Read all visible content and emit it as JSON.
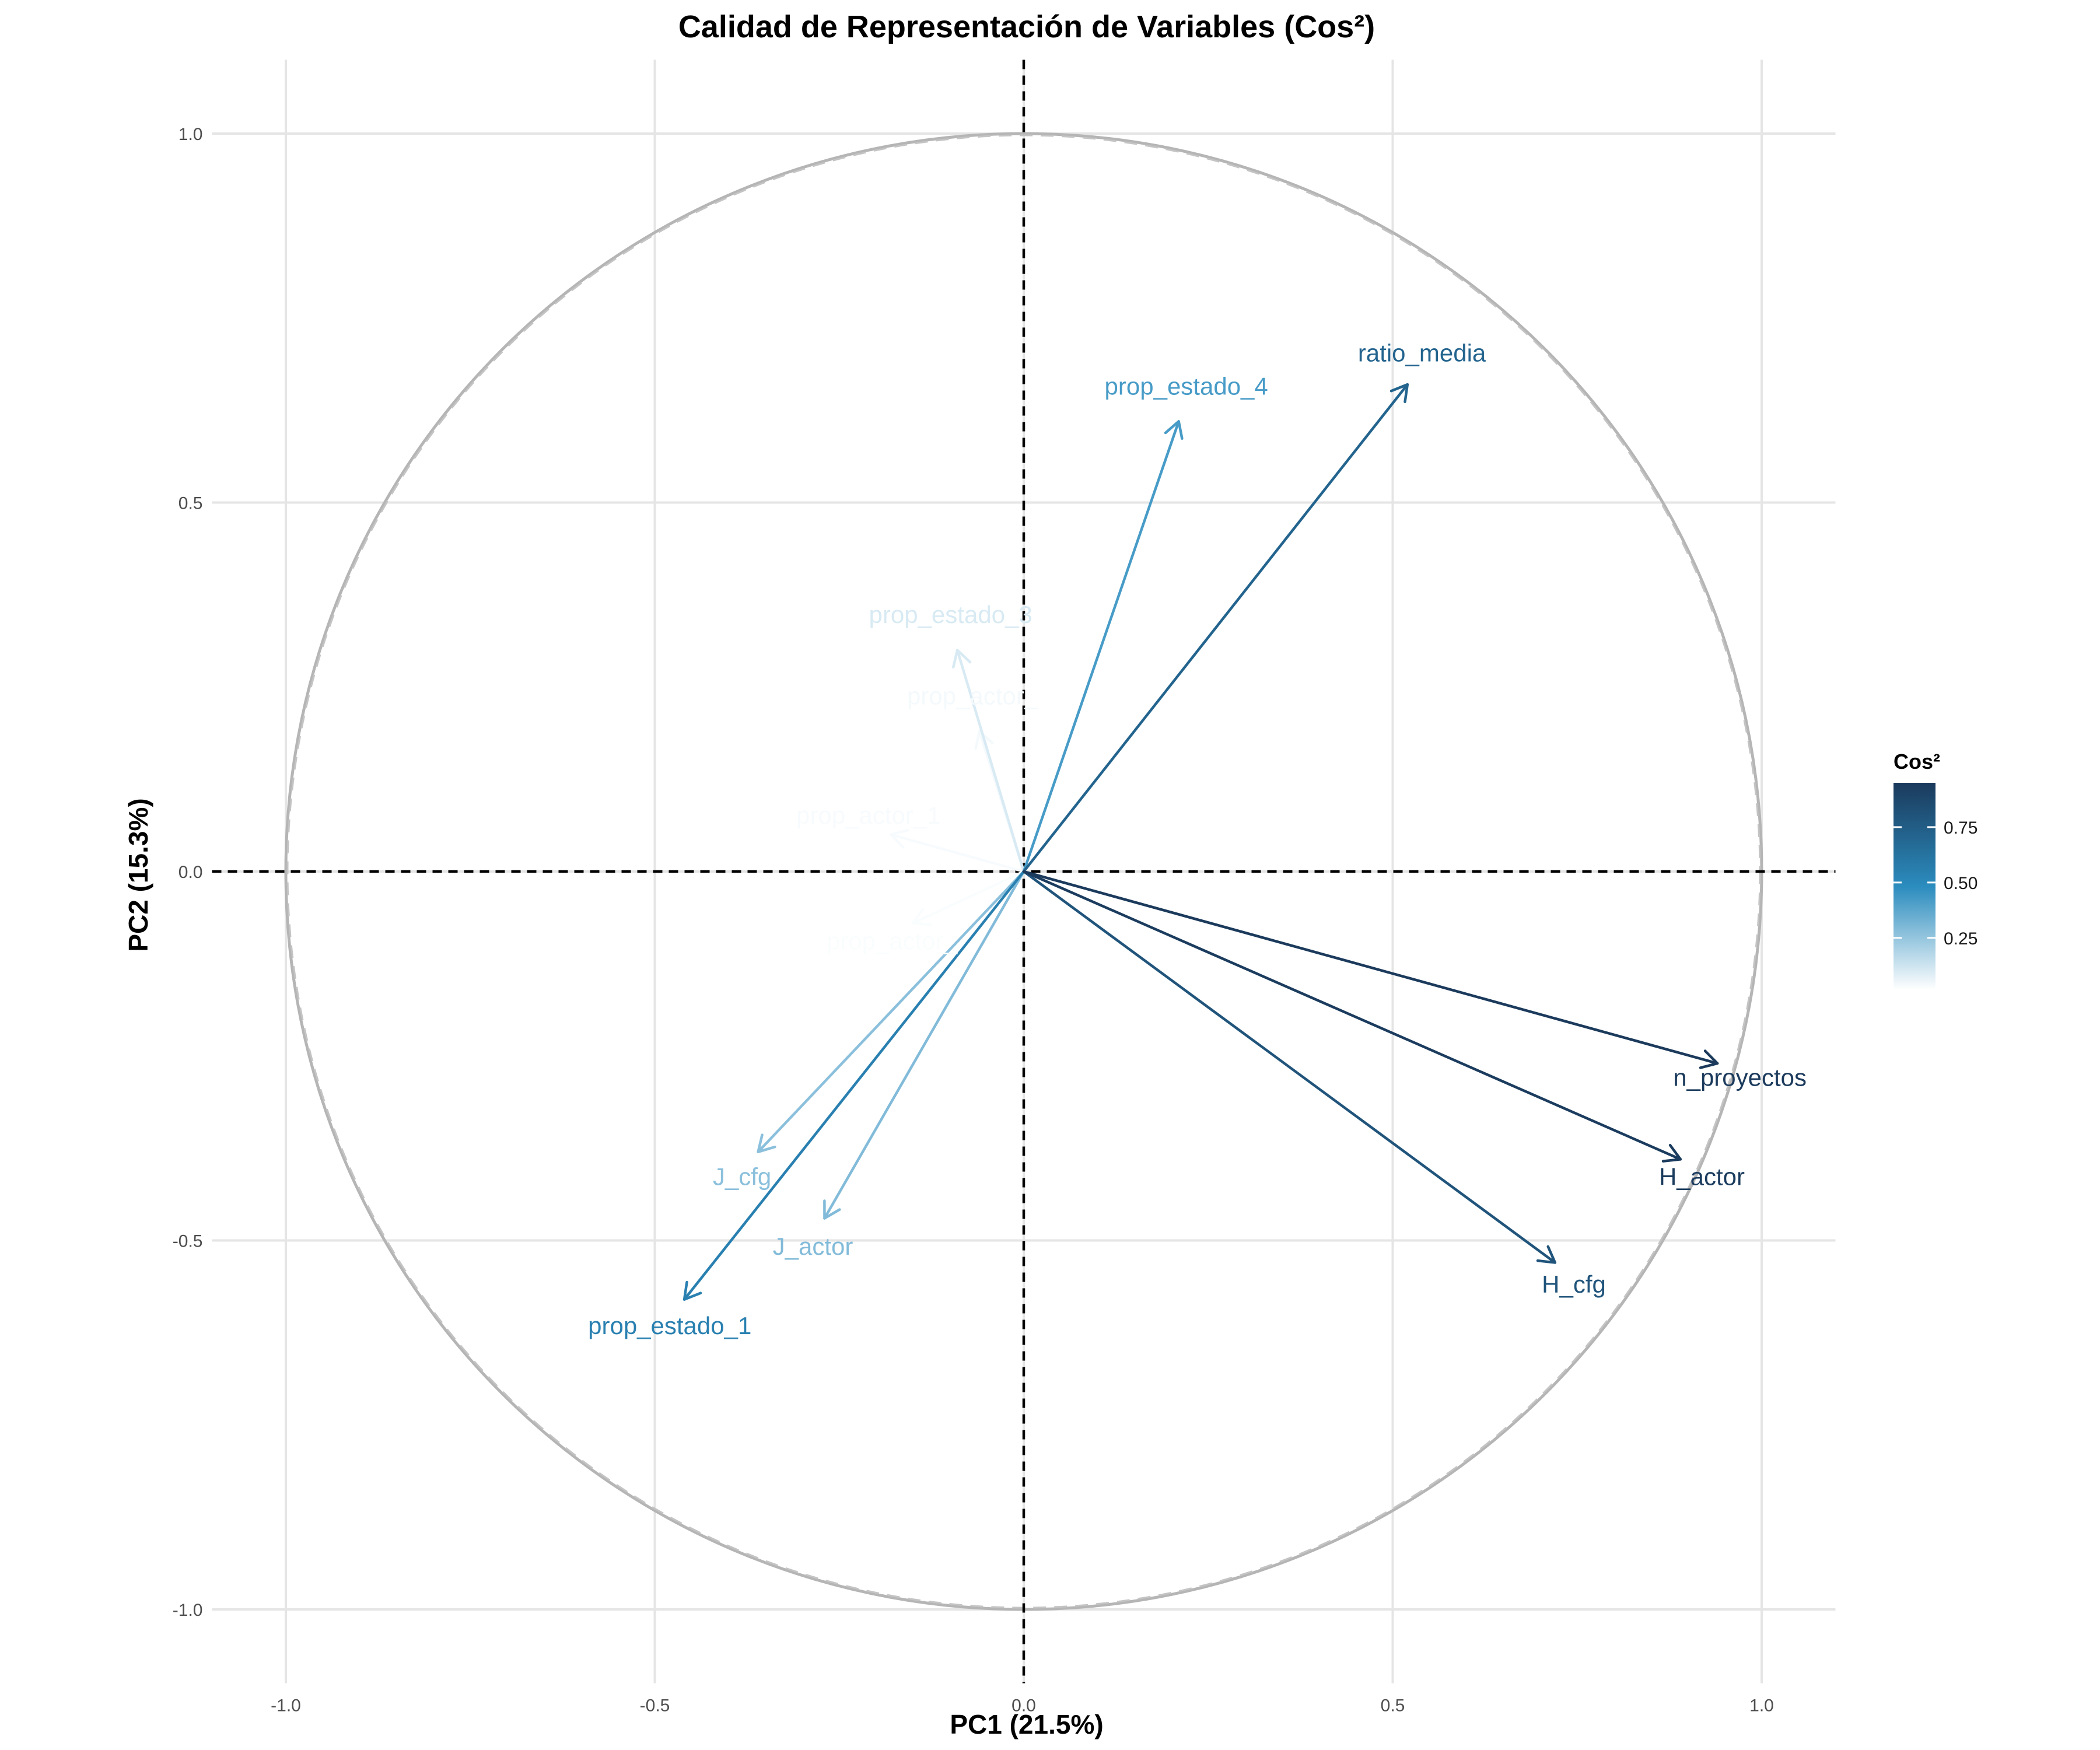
{
  "chart_data": {
    "type": "scatter",
    "subtype": "pca-correlation-circle",
    "title": "Calidad de Representación de Variables (Cos²)",
    "xlabel": "PC1 (21.5%)",
    "ylabel": "PC2 (15.3%)",
    "xlim": [
      -1.1,
      1.1
    ],
    "ylim": [
      -1.1,
      1.1
    ],
    "x_ticks": [
      -1.0,
      -0.5,
      0.0,
      0.5,
      1.0
    ],
    "x_tick_labels": [
      "-1.0",
      "-0.5",
      "0.0",
      "0.5",
      "1.0"
    ],
    "y_ticks": [
      -1.0,
      -0.5,
      0.0,
      0.5,
      1.0
    ],
    "y_tick_labels": [
      "-1.0",
      "-0.5",
      "0.0",
      "0.5",
      "1.0"
    ],
    "grid": true,
    "unit_circle": true,
    "reference_lines": {
      "x": 0,
      "y": 0,
      "style": "dashed"
    },
    "variables": [
      {
        "name": "ratio_media",
        "x": 0.52,
        "y": 0.66,
        "cos2": 0.71,
        "label": "ratio_media"
      },
      {
        "name": "prop_estado_4",
        "x": 0.21,
        "y": 0.61,
        "cos2": 0.42,
        "label": "prop_estado_4"
      },
      {
        "name": "prop_estado_3",
        "x": -0.09,
        "y": 0.3,
        "cos2": 0.1,
        "label": "prop_estado_3"
      },
      {
        "name": "prop_actor_",
        "x": -0.06,
        "y": 0.19,
        "cos2": 0.04,
        "label": "prop_actor_"
      },
      {
        "name": "prop_actor_1",
        "x": -0.18,
        "y": 0.05,
        "cos2": 0.03,
        "label": "prop_actor_1"
      },
      {
        "name": "",
        "x": 0.05,
        "y": 0.11,
        "cos2": 0.015,
        "label": ""
      },
      {
        "name": "prop_actor_",
        "x": -0.15,
        "y": -0.07,
        "cos2": 0.025,
        "label": "prop_actor_"
      },
      {
        "name": "J_cfg",
        "x": -0.36,
        "y": -0.38,
        "cos2": 0.27,
        "label": "J_cfg"
      },
      {
        "name": "J_actor",
        "x": -0.27,
        "y": -0.47,
        "cos2": 0.29,
        "label": "J_actor"
      },
      {
        "name": "prop_estado_1",
        "x": -0.46,
        "y": -0.58,
        "cos2": 0.55,
        "label": "prop_estado_1"
      },
      {
        "name": "n_proyectos",
        "x": 0.94,
        "y": -0.26,
        "cos2": 0.95,
        "label": "n_proyectos"
      },
      {
        "name": "H_actor",
        "x": 0.89,
        "y": -0.39,
        "cos2": 0.94,
        "label": "H_actor"
      },
      {
        "name": "H_cfg",
        "x": 0.72,
        "y": -0.53,
        "cos2": 0.8,
        "label": "H_cfg"
      }
    ],
    "legend": {
      "title": "Cos²",
      "type": "gradient",
      "placement": "right",
      "range": [
        0.015,
        0.95
      ],
      "ticks": [
        0.25,
        0.5,
        0.75
      ],
      "tick_labels": [
        "0.25",
        "0.50",
        "0.75"
      ],
      "colors": {
        "low": "#ffffff",
        "mid": "#2b8cbe",
        "high": "#1b3a5c"
      }
    }
  }
}
